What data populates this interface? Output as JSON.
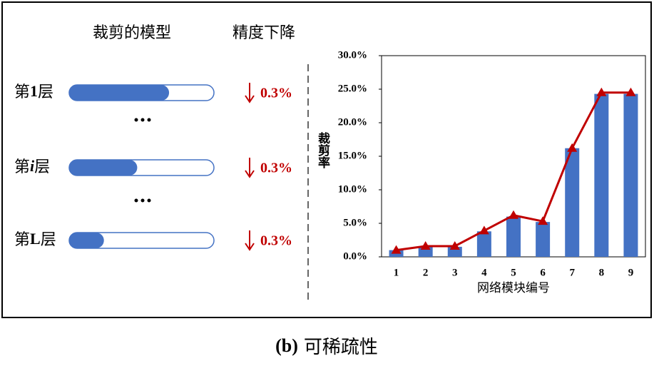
{
  "diagram": {
    "headers": [
      "裁剪的模型",
      "精度下降"
    ],
    "rows": [
      {
        "prefix": "第",
        "index": "1",
        "suffix": "层",
        "fill": 0.69,
        "drop": "0.3%"
      },
      {
        "prefix": "第",
        "index": "i",
        "suffix": "层",
        "fill": 0.47,
        "drop": "0.3%"
      },
      {
        "prefix": "第",
        "index": "L",
        "suffix": "层",
        "fill": 0.24,
        "drop": "0.3%"
      }
    ]
  },
  "chart_data": {
    "type": "bar",
    "categories": [
      "1",
      "2",
      "3",
      "4",
      "5",
      "6",
      "7",
      "8",
      "9"
    ],
    "series": [
      {
        "type": "bar",
        "color": "#4472c4",
        "values": [
          1.0,
          1.5,
          1.5,
          3.8,
          6.0,
          5.2,
          16.2,
          24.3,
          24.3
        ]
      },
      {
        "type": "line",
        "color": "#c00000",
        "values": [
          1.0,
          1.6,
          1.6,
          3.9,
          6.2,
          5.3,
          16.2,
          24.5,
          24.5
        ]
      }
    ],
    "ylim": [
      0,
      30
    ],
    "yticks": [
      {
        "value": 0,
        "label": "0.0%"
      },
      {
        "value": 5,
        "label": "5.0%"
      },
      {
        "value": 10,
        "label": "10.0%"
      },
      {
        "value": 15,
        "label": "15.0%"
      },
      {
        "value": 20,
        "label": "20.0%"
      },
      {
        "value": 25,
        "label": "25.0%"
      },
      {
        "value": 30,
        "label": "30.0%"
      }
    ],
    "y_label": "裁剪率",
    "x_label": "网络模块编号"
  },
  "caption": {
    "label": "(b)",
    "text": "可稀疏性"
  }
}
